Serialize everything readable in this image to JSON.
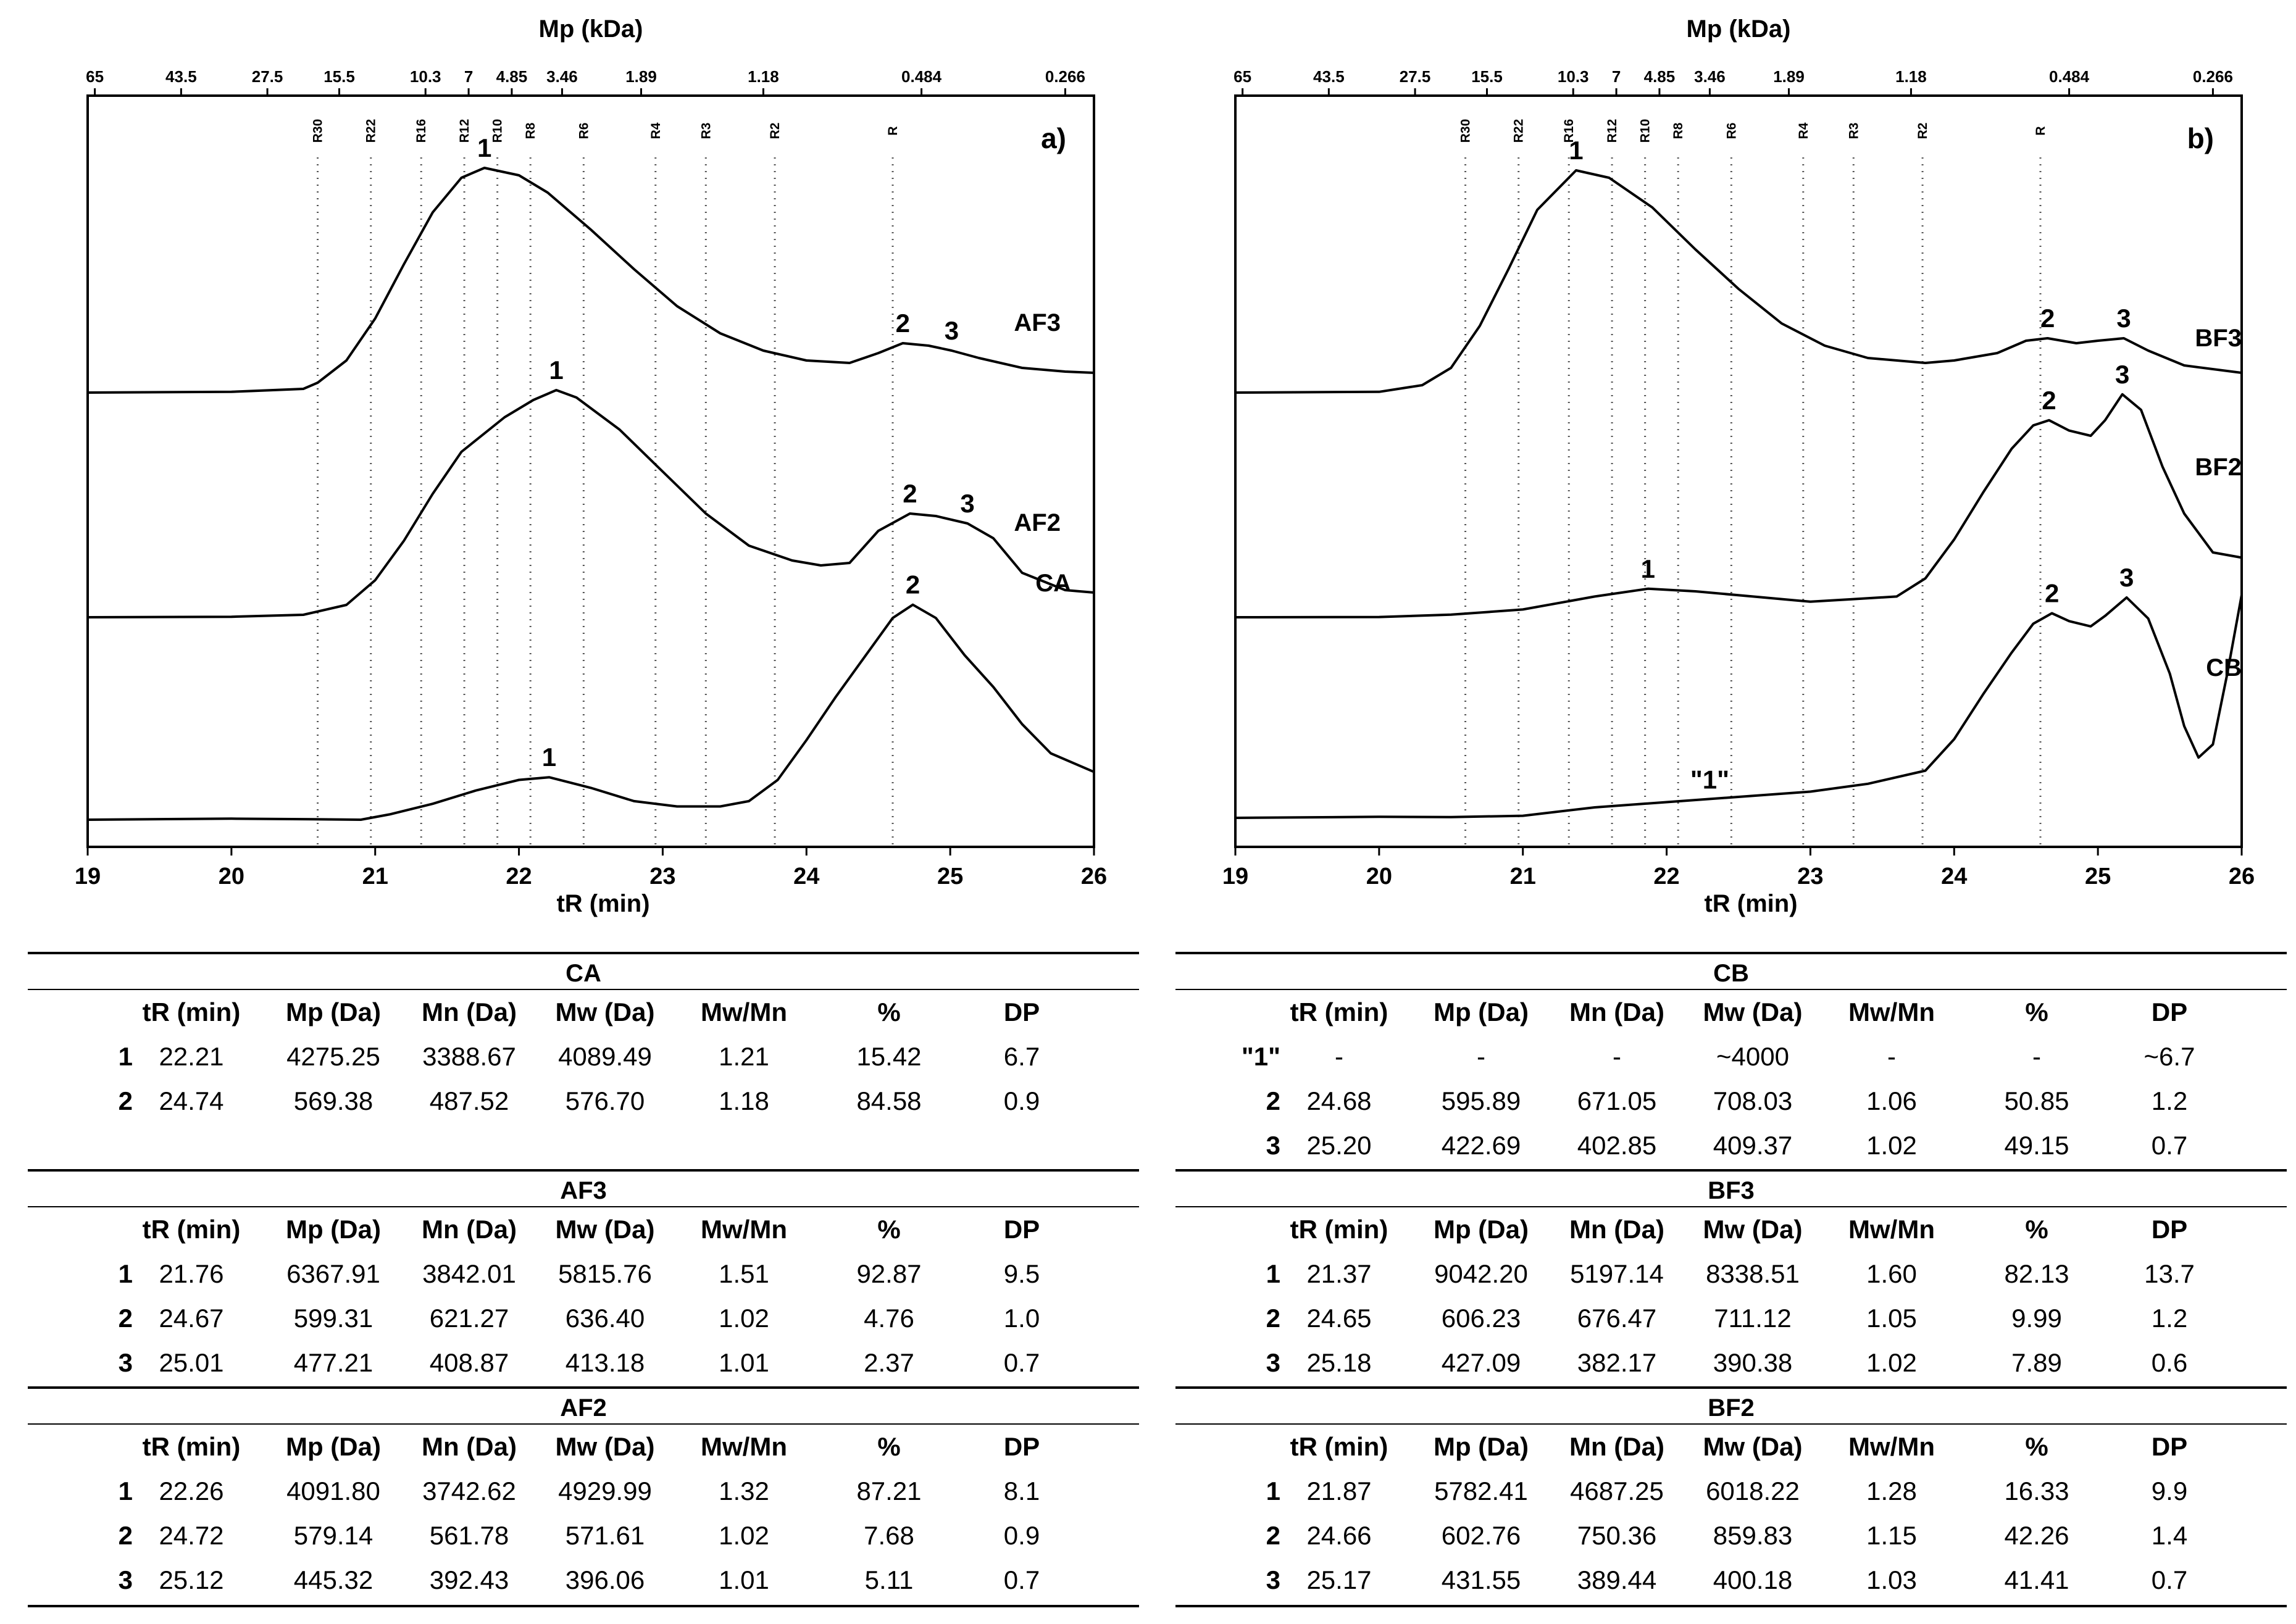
{
  "chart_data": [
    {
      "type": "line",
      "panel": "a)",
      "title": "Mp (kDa)",
      "xlabel": "tR (min)",
      "xlim": [
        19,
        26
      ],
      "xticks": [
        19,
        20,
        21,
        22,
        23,
        24,
        25,
        26
      ],
      "mp_ticks": [
        {
          "label": "65",
          "t": 19.05
        },
        {
          "label": "43.5",
          "t": 19.65
        },
        {
          "label": "27.5",
          "t": 20.25
        },
        {
          "label": "15.5",
          "t": 20.75
        },
        {
          "label": "10.3",
          "t": 21.35
        },
        {
          "label": "7",
          "t": 21.65
        },
        {
          "label": "4.85",
          "t": 21.95
        },
        {
          "label": "3.46",
          "t": 22.3
        },
        {
          "label": "1.89",
          "t": 22.85
        },
        {
          "label": "1.18",
          "t": 23.7
        },
        {
          "label": "0.484",
          "t": 24.8
        },
        {
          "label": "0.266",
          "t": 25.8
        }
      ],
      "reference_lines": [
        {
          "label": "R30",
          "t": 20.6
        },
        {
          "label": "R22",
          "t": 20.97
        },
        {
          "label": "R16",
          "t": 21.32
        },
        {
          "label": "R12",
          "t": 21.62
        },
        {
          "label": "R10",
          "t": 21.85
        },
        {
          "label": "R8",
          "t": 22.08
        },
        {
          "label": "R6",
          "t": 22.45
        },
        {
          "label": "R4",
          "t": 22.95
        },
        {
          "label": "R3",
          "t": 23.3
        },
        {
          "label": "R2",
          "t": 23.78
        },
        {
          "label": "R",
          "t": 24.6
        }
      ],
      "series": [
        {
          "name": "AF3",
          "x": [
            19,
            20,
            20.5,
            20.6,
            20.8,
            21,
            21.2,
            21.4,
            21.6,
            21.76,
            22,
            22.2,
            22.5,
            22.8,
            23.1,
            23.4,
            23.7,
            24,
            24.3,
            24.5,
            24.67,
            24.85,
            25.01,
            25.2,
            25.5,
            25.8,
            26
          ],
          "y": [
            0,
            0.003,
            0.015,
            0.04,
            0.13,
            0.3,
            0.52,
            0.73,
            0.87,
            0.91,
            0.88,
            0.81,
            0.66,
            0.5,
            0.35,
            0.24,
            0.17,
            0.13,
            0.12,
            0.16,
            0.2,
            0.19,
            0.17,
            0.14,
            0.1,
            0.085,
            0.08
          ],
          "peaks": [
            {
              "label": "1",
              "t": 21.76,
              "y": 0.91
            },
            {
              "label": "2",
              "t": 24.67,
              "y": 0.2
            },
            {
              "label": "3",
              "t": 25.01,
              "y": 0.17
            }
          ]
        },
        {
          "name": "AF2",
          "x": [
            19,
            20,
            20.5,
            20.8,
            21,
            21.2,
            21.4,
            21.6,
            21.9,
            22.1,
            22.26,
            22.4,
            22.7,
            23,
            23.3,
            23.6,
            23.9,
            24.1,
            24.3,
            24.5,
            24.72,
            24.9,
            25.12,
            25.3,
            25.5,
            25.8,
            26
          ],
          "y": [
            0,
            0.002,
            0.01,
            0.05,
            0.15,
            0.31,
            0.5,
            0.67,
            0.81,
            0.88,
            0.92,
            0.89,
            0.76,
            0.59,
            0.42,
            0.29,
            0.23,
            0.21,
            0.22,
            0.35,
            0.42,
            0.41,
            0.38,
            0.32,
            0.18,
            0.11,
            0.1
          ],
          "peaks": [
            {
              "label": "1",
              "t": 22.26,
              "y": 0.92
            },
            {
              "label": "2",
              "t": 24.72,
              "y": 0.42
            },
            {
              "label": "3",
              "t": 25.12,
              "y": 0.38
            }
          ]
        },
        {
          "name": "CA",
          "x": [
            19,
            20,
            20.5,
            20.9,
            21.1,
            21.4,
            21.7,
            22,
            22.21,
            22.5,
            22.8,
            23.1,
            23.4,
            23.6,
            23.8,
            24,
            24.2,
            24.4,
            24.6,
            24.74,
            24.9,
            25.1,
            25.3,
            25.5,
            25.7,
            26
          ],
          "y": [
            0,
            0.004,
            0.002,
            0.0,
            0.02,
            0.06,
            0.11,
            0.15,
            0.16,
            0.12,
            0.07,
            0.05,
            0.05,
            0.07,
            0.15,
            0.3,
            0.46,
            0.61,
            0.76,
            0.81,
            0.76,
            0.62,
            0.5,
            0.36,
            0.25,
            0.18
          ],
          "peaks": [
            {
              "label": "1",
              "t": 22.21,
              "y": 0.16
            },
            {
              "label": "2",
              "t": 24.74,
              "y": 0.81
            }
          ]
        }
      ]
    },
    {
      "type": "line",
      "panel": "b)",
      "title": "Mp (kDa)",
      "xlabel": "tR (min)",
      "xlim": [
        19,
        26
      ],
      "xticks": [
        19,
        20,
        21,
        22,
        23,
        24,
        25,
        26
      ],
      "mp_ticks": [
        {
          "label": "65",
          "t": 19.05
        },
        {
          "label": "43.5",
          "t": 19.65
        },
        {
          "label": "27.5",
          "t": 20.25
        },
        {
          "label": "15.5",
          "t": 20.75
        },
        {
          "label": "10.3",
          "t": 21.35
        },
        {
          "label": "7",
          "t": 21.65
        },
        {
          "label": "4.85",
          "t": 21.95
        },
        {
          "label": "3.46",
          "t": 22.3
        },
        {
          "label": "1.89",
          "t": 22.85
        },
        {
          "label": "1.18",
          "t": 23.7
        },
        {
          "label": "0.484",
          "t": 24.8
        },
        {
          "label": "0.266",
          "t": 25.8
        }
      ],
      "reference_lines": [
        {
          "label": "R30",
          "t": 20.6
        },
        {
          "label": "R22",
          "t": 20.97
        },
        {
          "label": "R16",
          "t": 21.32
        },
        {
          "label": "R12",
          "t": 21.62
        },
        {
          "label": "R10",
          "t": 21.85
        },
        {
          "label": "R8",
          "t": 22.08
        },
        {
          "label": "R6",
          "t": 22.45
        },
        {
          "label": "R4",
          "t": 22.95
        },
        {
          "label": "R3",
          "t": 23.3
        },
        {
          "label": "R2",
          "t": 23.78
        },
        {
          "label": "R",
          "t": 24.6
        }
      ],
      "series": [
        {
          "name": "BF3",
          "x": [
            19,
            20,
            20.3,
            20.5,
            20.7,
            20.9,
            21.1,
            21.37,
            21.6,
            21.9,
            22.2,
            22.5,
            22.8,
            23.1,
            23.4,
            23.8,
            24,
            24.3,
            24.5,
            24.65,
            24.85,
            25,
            25.18,
            25.35,
            25.6,
            26
          ],
          "y": [
            0,
            0.003,
            0.03,
            0.1,
            0.27,
            0.5,
            0.74,
            0.9,
            0.87,
            0.75,
            0.58,
            0.42,
            0.28,
            0.19,
            0.14,
            0.12,
            0.13,
            0.16,
            0.21,
            0.22,
            0.2,
            0.21,
            0.22,
            0.17,
            0.11,
            0.08
          ],
          "peaks": [
            {
              "label": "1",
              "t": 21.37,
              "y": 0.9
            },
            {
              "label": "2",
              "t": 24.65,
              "y": 0.22
            },
            {
              "label": "3",
              "t": 25.18,
              "y": 0.22
            }
          ]
        },
        {
          "name": "BF2",
          "x": [
            19,
            20,
            20.5,
            21,
            21.5,
            21.87,
            22.2,
            22.6,
            23,
            23.3,
            23.6,
            23.8,
            24,
            24.2,
            24.4,
            24.55,
            24.66,
            24.8,
            24.95,
            25.05,
            25.17,
            25.3,
            25.45,
            25.6,
            25.8,
            26
          ],
          "y": [
            0,
            0.001,
            0.01,
            0.03,
            0.08,
            0.11,
            0.1,
            0.08,
            0.06,
            0.07,
            0.08,
            0.15,
            0.3,
            0.48,
            0.65,
            0.74,
            0.76,
            0.72,
            0.7,
            0.76,
            0.86,
            0.8,
            0.58,
            0.4,
            0.25,
            0.23
          ],
          "peaks": [
            {
              "label": "1",
              "t": 21.87,
              "y": 0.11
            },
            {
              "label": "2",
              "t": 24.66,
              "y": 0.76
            },
            {
              "label": "3",
              "t": 25.17,
              "y": 0.86
            }
          ]
        },
        {
          "name": "CB",
          "x": [
            19,
            20,
            20.5,
            21,
            21.5,
            22,
            22.5,
            23,
            23.4,
            23.8,
            24,
            24.2,
            24.4,
            24.55,
            24.68,
            24.8,
            24.95,
            25.05,
            25.2,
            25.35,
            25.5,
            25.6,
            25.7,
            25.8,
            25.9,
            26
          ],
          "y": [
            0,
            0.004,
            0.003,
            0.008,
            0.04,
            0.06,
            0.08,
            0.1,
            0.13,
            0.18,
            0.3,
            0.47,
            0.63,
            0.74,
            0.78,
            0.75,
            0.73,
            0.77,
            0.84,
            0.76,
            0.55,
            0.35,
            0.23,
            0.28,
            0.55,
            0.85
          ],
          "peaks": [
            {
              "label": "\"1\"",
              "t": 22.3,
              "y": 0.07
            },
            {
              "label": "2",
              "t": 24.68,
              "y": 0.78
            },
            {
              "label": "3",
              "t": 25.2,
              "y": 0.84
            }
          ]
        }
      ]
    }
  ],
  "tables": {
    "left": [
      {
        "title": "CA",
        "header": [
          "",
          "tR (min)",
          "Mp (Da)",
          "Mn (Da)",
          "Mw (Da)",
          "Mw/Mn",
          "%",
          "DP"
        ],
        "rows": [
          [
            "1",
            "22.21",
            "4275.25",
            "3388.67",
            "4089.49",
            "1.21",
            "15.42",
            "6.7"
          ],
          [
            "2",
            "24.74",
            "569.38",
            "487.52",
            "576.70",
            "1.18",
            "84.58",
            "0.9"
          ]
        ]
      },
      {
        "title": "AF3",
        "header": [
          "",
          "tR (min)",
          "Mp (Da)",
          "Mn (Da)",
          "Mw (Da)",
          "Mw/Mn",
          "%",
          "DP"
        ],
        "rows": [
          [
            "1",
            "21.76",
            "6367.91",
            "3842.01",
            "5815.76",
            "1.51",
            "92.87",
            "9.5"
          ],
          [
            "2",
            "24.67",
            "599.31",
            "621.27",
            "636.40",
            "1.02",
            "4.76",
            "1.0"
          ],
          [
            "3",
            "25.01",
            "477.21",
            "408.87",
            "413.18",
            "1.01",
            "2.37",
            "0.7"
          ]
        ]
      },
      {
        "title": "AF2",
        "header": [
          "",
          "tR (min)",
          "Mp (Da)",
          "Mn (Da)",
          "Mw (Da)",
          "Mw/Mn",
          "%",
          "DP"
        ],
        "rows": [
          [
            "1",
            "22.26",
            "4091.80",
            "3742.62",
            "4929.99",
            "1.32",
            "87.21",
            "8.1"
          ],
          [
            "2",
            "24.72",
            "579.14",
            "561.78",
            "571.61",
            "1.02",
            "7.68",
            "0.9"
          ],
          [
            "3",
            "25.12",
            "445.32",
            "392.43",
            "396.06",
            "1.01",
            "5.11",
            "0.7"
          ]
        ]
      }
    ],
    "right": [
      {
        "title": "CB",
        "header": [
          "",
          "tR (min)",
          "Mp (Da)",
          "Mn (Da)",
          "Mw (Da)",
          "Mw/Mn",
          "%",
          "DP"
        ],
        "rows": [
          [
            "\"1\"",
            "-",
            "-",
            "-",
            "~4000",
            "-",
            "-",
            "~6.7"
          ],
          [
            "2",
            "24.68",
            "595.89",
            "671.05",
            "708.03",
            "1.06",
            "50.85",
            "1.2"
          ],
          [
            "3",
            "25.20",
            "422.69",
            "402.85",
            "409.37",
            "1.02",
            "49.15",
            "0.7"
          ]
        ]
      },
      {
        "title": "BF3",
        "header": [
          "",
          "tR (min)",
          "Mp (Da)",
          "Mn (Da)",
          "Mw (Da)",
          "Mw/Mn",
          "%",
          "DP"
        ],
        "rows": [
          [
            "1",
            "21.37",
            "9042.20",
            "5197.14",
            "8338.51",
            "1.60",
            "82.13",
            "13.7"
          ],
          [
            "2",
            "24.65",
            "606.23",
            "676.47",
            "711.12",
            "1.05",
            "9.99",
            "1.2"
          ],
          [
            "3",
            "25.18",
            "427.09",
            "382.17",
            "390.38",
            "1.02",
            "7.89",
            "0.6"
          ]
        ]
      },
      {
        "title": "BF2",
        "header": [
          "",
          "tR (min)",
          "Mp (Da)",
          "Mn (Da)",
          "Mw (Da)",
          "Mw/Mn",
          "%",
          "DP"
        ],
        "rows": [
          [
            "1",
            "21.87",
            "5782.41",
            "4687.25",
            "6018.22",
            "1.28",
            "16.33",
            "9.9"
          ],
          [
            "2",
            "24.66",
            "602.76",
            "750.36",
            "859.83",
            "1.15",
            "42.26",
            "1.4"
          ],
          [
            "3",
            "25.17",
            "431.55",
            "389.44",
            "400.18",
            "1.03",
            "41.41",
            "0.7"
          ]
        ]
      }
    ]
  }
}
